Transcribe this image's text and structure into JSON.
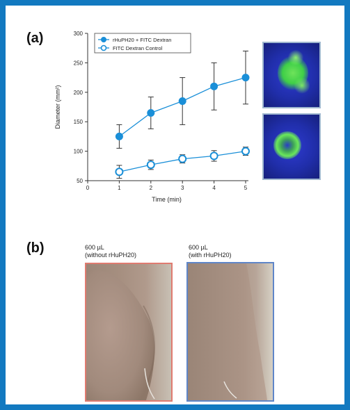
{
  "figure": {
    "panel_a_label": "(a)",
    "panel_b_label": "(b)",
    "frame_color": "#1279c0"
  },
  "chart_data": {
    "type": "line",
    "xlabel": "Time (min)",
    "ylabel": "Diameter (mm²)",
    "x": [
      1,
      2,
      3,
      4,
      5
    ],
    "xlim": [
      0,
      5
    ],
    "ylim": [
      50,
      300
    ],
    "xticks": [
      0,
      1,
      2,
      3,
      4,
      5
    ],
    "yticks": [
      50,
      100,
      150,
      200,
      250,
      300
    ],
    "grid": false,
    "legend_position": "top-left",
    "series": [
      {
        "name": "rHuPH20 + FITC Dextran",
        "marker": "filled-circle",
        "color": "#1a8fd8",
        "values": [
          125,
          165,
          185,
          210,
          225
        ],
        "errors": [
          20,
          27,
          40,
          40,
          45
        ]
      },
      {
        "name": "FITC Dextran Control",
        "marker": "open-circle",
        "color": "#1a8fd8",
        "values": [
          65,
          77,
          87,
          92,
          100
        ],
        "errors": [
          11,
          8,
          7,
          9,
          7
        ]
      }
    ]
  },
  "thumbnails": [
    {
      "name": "fluorescence-spread-image",
      "description_icon": "green-fluorescence-spread"
    },
    {
      "name": "fluorescence-control-image",
      "description_icon": "green-fluorescence-ring"
    }
  ],
  "photos": {
    "left_caption": "600 µL\n(without rHuPH20)",
    "right_caption": "600 µL\n(with rHuPH20)",
    "left_border": "#e07b70",
    "right_border": "#5f86c8"
  }
}
